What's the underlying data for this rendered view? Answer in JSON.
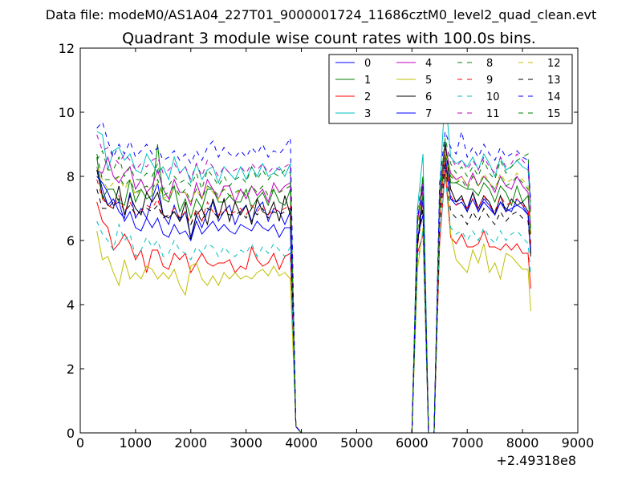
{
  "figure": {
    "suptitle": "Data file: modeM0/AS1A04_227T01_9000001724_11686cztM0_level2_quad_clean.evt",
    "x_offset_label": "+2.49318e8"
  },
  "chart_data": {
    "type": "line",
    "title": "Quadrant 3 module wise count rates with 100.0s bins.",
    "xlabel": "",
    "ylabel": "",
    "xlim": [
      0,
      9000
    ],
    "ylim": [
      0,
      12
    ],
    "xticks": [
      "0",
      "1000",
      "2000",
      "3000",
      "4000",
      "5000",
      "6000",
      "7000",
      "8000",
      "9000"
    ],
    "yticks": [
      "0",
      "2",
      "4",
      "6",
      "8",
      "10",
      "12"
    ],
    "grid": false,
    "legend_position": "top-right",
    "x": [
      300,
      400,
      500,
      600,
      700,
      800,
      900,
      1000,
      1100,
      1200,
      1300,
      1400,
      1500,
      1600,
      1700,
      1800,
      1900,
      2000,
      2100,
      2200,
      2300,
      2400,
      2500,
      2600,
      2700,
      2800,
      2900,
      3000,
      3100,
      3200,
      3300,
      3400,
      3500,
      3600,
      3700,
      3800,
      3900,
      4000,
      4200,
      4500,
      5000,
      5500,
      6000,
      6100,
      6200,
      6300,
      6400,
      6500,
      6600,
      6700,
      6800,
      6900,
      7000,
      7100,
      7200,
      7300,
      7400,
      7500,
      7600,
      7700,
      7800,
      7900,
      8000,
      8100,
      8150
    ],
    "series": [
      {
        "name": "0",
        "color": "#0000ff",
        "dash": "solid",
        "values": [
          8.3,
          7.6,
          7.1,
          7.3,
          6.9,
          6.7,
          7.5,
          6.7,
          7.0,
          6.7,
          7.3,
          7.8,
          6.8,
          6.5,
          7.1,
          6.6,
          6.9,
          6.1,
          6.8,
          6.4,
          6.9,
          7.2,
          6.6,
          6.9,
          7.1,
          6.5,
          6.9,
          7.1,
          6.6,
          7.0,
          7.2,
          6.6,
          7.0,
          6.9,
          6.5,
          6.9,
          0.2,
          0,
          0,
          0,
          0,
          0,
          0,
          5.9,
          7.3,
          0,
          0,
          6.8,
          8.7,
          7.3,
          7.2,
          7.3,
          7.0,
          7.5,
          6.9,
          7.3,
          7.1,
          6.8,
          7.2,
          7.0,
          6.9,
          7.3,
          7.1,
          6.8,
          5.6
        ]
      },
      {
        "name": "1",
        "color": "#008000",
        "dash": "solid",
        "values": [
          8.6,
          7.3,
          7.6,
          7.6,
          7.2,
          7.1,
          7.9,
          7.2,
          7.6,
          7.3,
          7.4,
          9.0,
          7.3,
          7.2,
          7.7,
          6.9,
          7.3,
          6.7,
          7.3,
          7.0,
          7.6,
          7.6,
          7.2,
          7.2,
          7.4,
          7.2,
          7.2,
          7.6,
          7.0,
          7.3,
          7.5,
          7.1,
          7.6,
          7.2,
          7.1,
          7.6,
          0.2,
          0,
          0,
          0,
          0,
          0,
          0,
          6.5,
          8.0,
          0,
          0,
          7.5,
          9.1,
          7.8,
          7.8,
          7.7,
          7.6,
          7.6,
          7.4,
          7.8,
          7.6,
          7.2,
          7.7,
          7.5,
          7.1,
          7.7,
          7.2,
          7.4,
          6.2
        ]
      },
      {
        "name": "2",
        "color": "#ff0000",
        "dash": "solid",
        "values": [
          7.2,
          6.6,
          6.4,
          5.7,
          5.9,
          6.2,
          5.9,
          5.4,
          5.7,
          5.0,
          5.7,
          5.7,
          5.2,
          5.1,
          5.6,
          5.4,
          5.6,
          5.0,
          5.3,
          5.6,
          5.3,
          5.2,
          5.3,
          5.3,
          5.4,
          5.0,
          5.2,
          5.1,
          5.8,
          5.4,
          5.2,
          5.3,
          5.6,
          5.1,
          5.5,
          5.6,
          0.2,
          0,
          0,
          0,
          0,
          0,
          0,
          5.6,
          6.2,
          0,
          0,
          5.9,
          8.2,
          6.1,
          5.9,
          6.2,
          5.8,
          5.8,
          5.9,
          6.3,
          5.8,
          5.8,
          5.7,
          5.9,
          5.7,
          5.9,
          5.6,
          5.6,
          4.5
        ]
      },
      {
        "name": "3",
        "color": "#00bfbf",
        "dash": "solid",
        "values": [
          9.4,
          9.3,
          8.2,
          8.8,
          8.9,
          8.5,
          8.7,
          8.2,
          8.1,
          8.7,
          8.4,
          8.1,
          8.3,
          7.9,
          8.6,
          8.1,
          8.3,
          7.8,
          8.4,
          7.9,
          8.2,
          8.3,
          7.8,
          8.3,
          8.1,
          7.9,
          8.3,
          7.9,
          8.3,
          8.0,
          8.4,
          8.0,
          8.1,
          8.3,
          8.0,
          8.4,
          0.2,
          0,
          0,
          0,
          0,
          0,
          0,
          7.0,
          8.7,
          0,
          0,
          7.6,
          10.6,
          8.6,
          8.4,
          8.5,
          8.3,
          8.6,
          8.2,
          8.7,
          8.4,
          8.0,
          8.6,
          8.2,
          8.3,
          8.5,
          8.3,
          8.2,
          7.0
        ]
      },
      {
        "name": "4",
        "color": "#bf00bf",
        "dash": "solid",
        "values": [
          8.2,
          8.1,
          8.6,
          8.0,
          7.8,
          8.1,
          8.3,
          7.6,
          7.9,
          7.5,
          7.7,
          8.2,
          7.6,
          7.3,
          7.9,
          7.5,
          7.5,
          7.1,
          7.8,
          7.3,
          7.9,
          7.6,
          7.3,
          7.7,
          7.7,
          7.2,
          7.6,
          7.3,
          7.7,
          7.4,
          7.6,
          7.2,
          7.8,
          7.5,
          7.7,
          7.8,
          0.2,
          0,
          0,
          0,
          0,
          0,
          0,
          6.6,
          7.8,
          0,
          0,
          7.3,
          9.0,
          8.1,
          7.9,
          8.0,
          7.7,
          8.1,
          7.7,
          8.0,
          7.8,
          7.5,
          8.0,
          7.7,
          7.6,
          8.0,
          7.7,
          7.5,
          6.4
        ]
      },
      {
        "name": "5",
        "color": "#bfbf00",
        "dash": "solid",
        "values": [
          6.3,
          5.4,
          5.5,
          5.0,
          4.6,
          5.4,
          4.8,
          5.0,
          4.8,
          5.2,
          5.1,
          4.8,
          5.0,
          4.8,
          5.1,
          4.6,
          4.3,
          5.2,
          5.3,
          4.8,
          4.6,
          4.9,
          4.6,
          5.0,
          4.8,
          5.0,
          4.8,
          4.9,
          4.8,
          5.0,
          5.1,
          4.9,
          5.2,
          4.9,
          5.0,
          4.8,
          0.2,
          0,
          0,
          0,
          0,
          0,
          0,
          5.1,
          6.4,
          0,
          0,
          6.8,
          8.7,
          6.2,
          5.4,
          5.2,
          5.0,
          5.7,
          5.3,
          5.9,
          5.0,
          5.3,
          4.8,
          5.6,
          5.5,
          5.3,
          5.1,
          5.1,
          3.8
        ]
      },
      {
        "name": "6",
        "color": "#000000",
        "dash": "solid",
        "values": [
          8.2,
          7.4,
          7.1,
          7.0,
          7.7,
          6.8,
          7.4,
          7.0,
          6.8,
          7.5,
          7.2,
          7.5,
          6.8,
          6.7,
          6.9,
          6.6,
          7.2,
          6.0,
          6.8,
          7.0,
          6.5,
          7.3,
          6.7,
          7.3,
          6.6,
          7.2,
          6.8,
          7.1,
          6.5,
          7.3,
          6.9,
          6.8,
          7.2,
          6.6,
          7.4,
          6.8,
          0.2,
          0,
          0,
          0,
          0,
          0,
          0,
          5.8,
          7.7,
          0,
          0,
          6.9,
          9.0,
          7.6,
          7.2,
          7.4,
          6.9,
          7.5,
          7.0,
          7.4,
          7.2,
          6.8,
          7.4,
          6.9,
          7.3,
          7.1,
          7.2,
          6.9,
          5.5
        ]
      },
      {
        "name": "7",
        "color": "#0000ff",
        "dash": "solid",
        "values": [
          8.0,
          7.8,
          7.5,
          7.1,
          7.2,
          6.6,
          6.9,
          6.4,
          6.3,
          6.7,
          6.4,
          6.7,
          6.2,
          6.1,
          6.5,
          6.2,
          6.3,
          6.0,
          6.6,
          6.2,
          6.4,
          6.6,
          6.3,
          6.5,
          6.3,
          6.2,
          6.5,
          6.4,
          6.3,
          6.6,
          6.4,
          6.3,
          6.5,
          6.1,
          6.4,
          6.4,
          0.2,
          0,
          0,
          0,
          0,
          0,
          0,
          6.1,
          6.8,
          0,
          0,
          7.1,
          8.5,
          7.3,
          7.1,
          7.2,
          6.9,
          7.3,
          6.9,
          7.2,
          7.0,
          6.8,
          7.2,
          6.9,
          7.0,
          7.1,
          7.0,
          6.8,
          5.7
        ]
      },
      {
        "name": "8",
        "color": "#008000",
        "dash": "dashed",
        "values": [
          8.5,
          8.8,
          8.2,
          8.2,
          8.6,
          8.0,
          8.3,
          7.9,
          7.9,
          8.1,
          8.0,
          8.4,
          7.6,
          7.7,
          8.0,
          7.8,
          7.9,
          7.7,
          8.1,
          7.6,
          8.2,
          8.0,
          7.7,
          8.0,
          7.7,
          7.9,
          8.0,
          7.8,
          8.3,
          7.9,
          8.2,
          7.9,
          8.1,
          8.0,
          8.2,
          8.1,
          0.2,
          0,
          0,
          0,
          0,
          0,
          0,
          6.9,
          8.0,
          0,
          0,
          7.3,
          9.2,
          8.4,
          8.1,
          8.3,
          8.0,
          8.3,
          8.0,
          8.5,
          8.1,
          7.9,
          8.5,
          8.1,
          8.3,
          8.5,
          8.6,
          8.7,
          6.8
        ]
      },
      {
        "name": "9",
        "color": "#ff0000",
        "dash": "dashed",
        "values": [
          7.9,
          7.3,
          7.1,
          7.0,
          7.4,
          6.9,
          7.2,
          6.8,
          6.9,
          7.1,
          7.0,
          7.3,
          6.7,
          6.8,
          7.0,
          6.7,
          6.9,
          6.5,
          7.0,
          6.6,
          7.2,
          6.9,
          6.8,
          7.0,
          6.8,
          6.9,
          7.0,
          6.8,
          7.1,
          6.9,
          7.1,
          6.8,
          7.0,
          6.9,
          7.0,
          7.1,
          0.2,
          0,
          0,
          0,
          0,
          0,
          0,
          5.8,
          7.1,
          0,
          0,
          6.7,
          8.6,
          7.4,
          7.1,
          7.3,
          7.0,
          7.3,
          7.0,
          7.4,
          7.1,
          6.9,
          7.4,
          7.1,
          7.2,
          7.3,
          7.1,
          7.0,
          5.9
        ]
      },
      {
        "name": "10",
        "color": "#00bfbf",
        "dash": "dashed",
        "values": [
          6.6,
          6.2,
          6.0,
          5.7,
          6.5,
          6.0,
          6.2,
          5.5,
          5.7,
          6.1,
          5.8,
          6.0,
          5.5,
          5.6,
          6.0,
          5.7,
          5.6,
          5.4,
          5.8,
          5.6,
          5.9,
          5.8,
          5.5,
          5.8,
          5.6,
          5.5,
          5.7,
          5.6,
          5.9,
          5.5,
          5.8,
          5.6,
          5.9,
          5.7,
          5.5,
          5.8,
          0.2,
          0,
          0,
          0,
          0,
          0,
          0,
          5.3,
          6.3,
          0,
          0,
          6.1,
          8.0,
          6.4,
          6.2,
          6.3,
          6.0,
          6.3,
          6.0,
          6.4,
          6.1,
          5.9,
          6.3,
          6.0,
          6.2,
          6.3,
          6.1,
          5.9,
          5.0
        ]
      },
      {
        "name": "11",
        "color": "#bf00bf",
        "dash": "dashed",
        "values": [
          9.3,
          8.8,
          8.9,
          8.6,
          8.4,
          8.7,
          8.5,
          8.2,
          8.4,
          8.3,
          8.5,
          8.6,
          8.1,
          8.2,
          8.4,
          8.1,
          8.3,
          7.9,
          8.4,
          8.0,
          8.5,
          8.3,
          8.0,
          8.3,
          8.1,
          8.2,
          8.3,
          8.1,
          8.4,
          8.2,
          8.4,
          8.1,
          8.3,
          8.2,
          8.3,
          8.4,
          0.2,
          0,
          0,
          0,
          0,
          0,
          0,
          6.6,
          7.6,
          0,
          0,
          7.2,
          8.9,
          8.6,
          8.3,
          8.5,
          8.2,
          8.5,
          8.2,
          8.6,
          8.3,
          8.1,
          8.6,
          8.3,
          8.4,
          8.7,
          8.5,
          8.3,
          6.9
        ]
      },
      {
        "name": "12",
        "color": "#bfbf00",
        "dash": "dashed",
        "values": [
          8.3,
          7.9,
          7.6,
          7.8,
          8.0,
          7.6,
          7.9,
          7.4,
          7.6,
          7.7,
          7.5,
          7.8,
          7.3,
          7.4,
          7.6,
          7.4,
          7.5,
          7.2,
          7.6,
          7.3,
          7.7,
          7.5,
          7.3,
          7.6,
          7.4,
          7.4,
          7.6,
          7.4,
          7.7,
          7.5,
          7.7,
          7.4,
          7.6,
          7.5,
          7.6,
          7.7,
          0.2,
          0,
          0,
          0,
          0,
          0,
          0,
          6.4,
          7.6,
          0,
          0,
          7.0,
          8.8,
          8.1,
          7.8,
          8.0,
          7.7,
          8.0,
          7.7,
          8.1,
          7.8,
          7.6,
          8.1,
          7.8,
          7.9,
          8.1,
          7.9,
          7.7,
          6.4
        ]
      },
      {
        "name": "13",
        "color": "#000000",
        "dash": "dashed",
        "values": [
          7.6,
          7.0,
          7.0,
          7.2,
          7.3,
          6.9,
          7.1,
          6.8,
          6.9,
          7.0,
          6.9,
          7.1,
          6.7,
          6.8,
          6.9,
          6.7,
          6.8,
          6.5,
          6.9,
          6.6,
          7.0,
          6.9,
          6.7,
          6.9,
          6.8,
          6.8,
          6.9,
          6.7,
          7.0,
          6.8,
          7.0,
          6.7,
          6.9,
          6.8,
          6.9,
          7.0,
          0.2,
          0,
          0,
          0,
          0,
          0,
          0,
          5.9,
          7.0,
          0,
          0,
          6.5,
          8.4,
          6.9,
          6.7,
          6.8,
          6.5,
          6.9,
          6.6,
          7.0,
          6.7,
          6.5,
          6.9,
          6.6,
          6.8,
          6.9,
          6.7,
          6.6,
          5.6
        ]
      },
      {
        "name": "14",
        "color": "#0000ff",
        "dash": "dashed",
        "values": [
          9.5,
          9.7,
          9.1,
          8.6,
          9.0,
          8.7,
          9.1,
          8.6,
          8.8,
          9.0,
          8.7,
          8.9,
          8.5,
          8.6,
          8.8,
          8.5,
          8.7,
          8.4,
          8.8,
          8.5,
          8.9,
          9.1,
          8.6,
          8.9,
          8.7,
          8.6,
          8.8,
          8.6,
          8.9,
          8.7,
          9.0,
          8.6,
          8.8,
          8.7,
          8.9,
          9.2,
          0.2,
          0,
          0,
          0,
          0,
          0,
          0,
          6.7,
          7.7,
          0,
          0,
          7.8,
          9.4,
          8.9,
          8.7,
          9.4,
          8.6,
          8.9,
          8.6,
          9.0,
          8.7,
          8.5,
          8.9,
          8.6,
          8.7,
          8.8,
          8.6,
          8.5,
          7.2
        ]
      },
      {
        "name": "15",
        "color": "#008000",
        "dash": "dashed",
        "values": [
          8.7,
          7.9,
          7.9,
          7.9,
          8.0,
          7.7,
          7.9,
          7.5,
          7.6,
          7.7,
          7.6,
          7.9,
          7.4,
          7.5,
          7.7,
          7.4,
          7.6,
          7.2,
          7.6,
          7.3,
          7.7,
          7.6,
          7.4,
          7.6,
          7.4,
          7.5,
          7.6,
          7.4,
          7.7,
          7.5,
          7.7,
          7.4,
          7.6,
          7.5,
          7.6,
          7.7,
          0.2,
          0,
          0,
          0,
          0,
          0,
          0,
          6.3,
          7.4,
          0,
          0,
          7.0,
          8.7,
          8.0,
          7.8,
          7.9,
          7.6,
          8.0,
          7.7,
          8.0,
          7.8,
          7.6,
          8.0,
          7.7,
          7.8,
          8.0,
          7.8,
          7.6,
          6.3
        ]
      }
    ]
  }
}
